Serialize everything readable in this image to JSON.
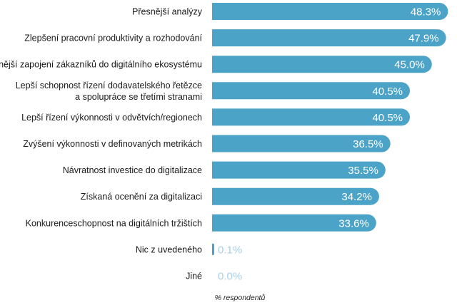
{
  "chart_data": {
    "type": "bar",
    "orientation": "horizontal",
    "categories": [
      "Přesnější analýzy",
      "Zlepšení pracovní produktivity a rozhodování",
      "Těsnější zapojení zákazníků do digitálního ekosystému",
      "Lepší schopnost řízení dodavatelského řetězce\na spolupráce se třetími stranami",
      "Lepší řízení výkonnosti v odvětvích/regionech",
      "Zvýšení výkonnosti v definovaných metrikách",
      "Návratnost investice do digitalizace",
      "Získaná ocenění za digitalizaci",
      "Konkurenceschopnost na digitálních tržištích",
      "Nic z uvedeného",
      "Jiné"
    ],
    "values": [
      48.3,
      47.9,
      45.0,
      40.5,
      40.5,
      36.5,
      35.5,
      34.2,
      33.6,
      0.1,
      0.0
    ],
    "value_labels": [
      "48.3%",
      "47.9%",
      "45.0%",
      "40.5%",
      "40.5%",
      "36.5%",
      "35.5%",
      "34.2%",
      "33.6%",
      "0.1%",
      "0.0%"
    ],
    "xlabel": "% respondentů",
    "xlim": [
      0,
      50
    ],
    "grid": false,
    "colors": {
      "bar": "#4ba3c7",
      "value_inside": "#ffffff",
      "value_outside": "#a9d1e5",
      "label": "#1a1a1a"
    }
  }
}
